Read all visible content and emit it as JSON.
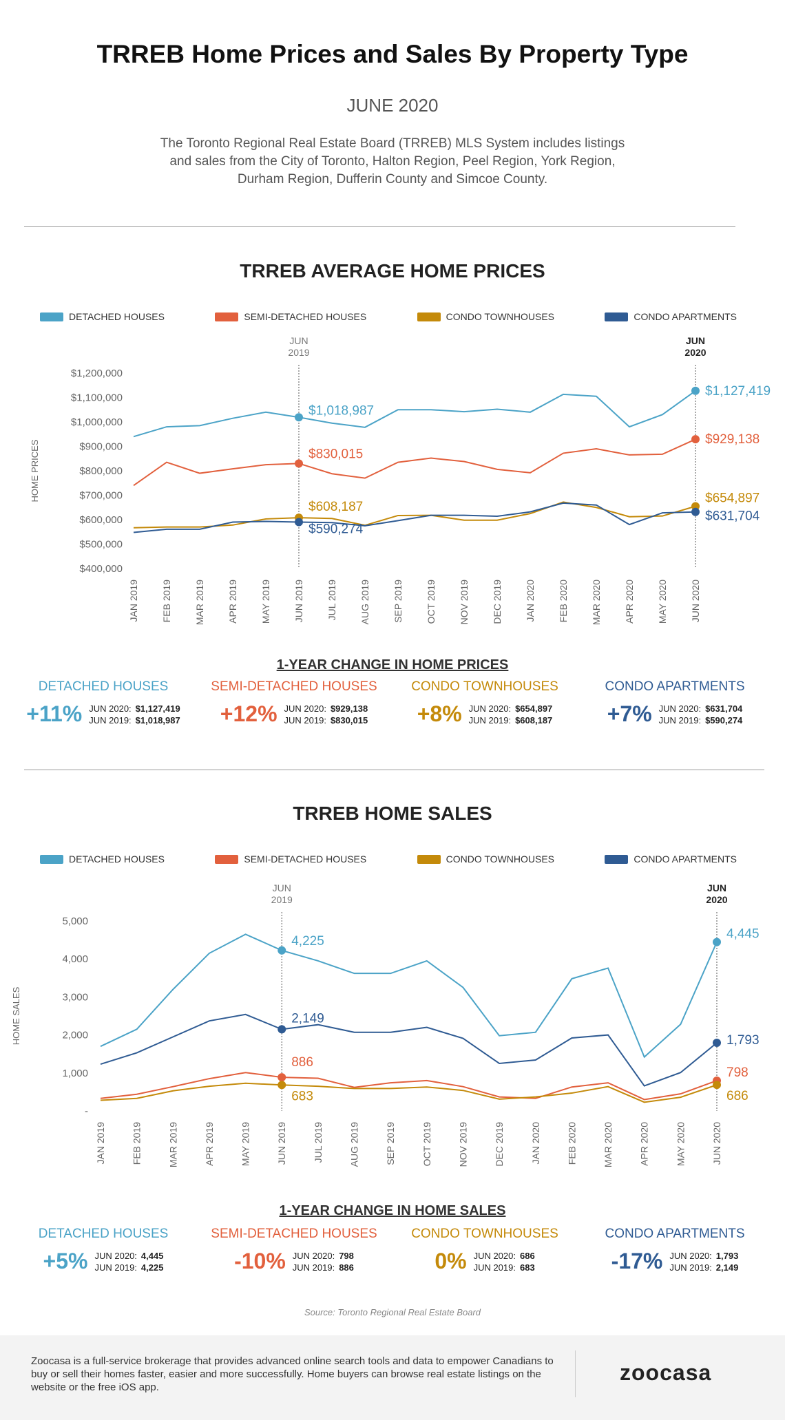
{
  "header": {
    "title": "TRREB Home Prices and Sales By Property Type",
    "subtitle": "JUNE 2020",
    "description": "The Toronto Regional Real Estate Board (TRREB) MLS System includes listings and sales from the City of Toronto, Halton Region, Peel Region, York Region, Durham Region, Dufferin County and Simcoe County."
  },
  "colors": {
    "detached": "#4ba3c7",
    "semi": "#e2603d",
    "town": "#c48a0a",
    "apt": "#2f5b93"
  },
  "legend": [
    "DETACHED HOUSES",
    "SEMI-DETACHED HOUSES",
    "CONDO TOWNHOUSES",
    "CONDO APARTMENTS"
  ],
  "chart_data": [
    {
      "type": "line",
      "title": "TRREB AVERAGE HOME PRICES",
      "ylabel": "HOME PRICES",
      "ylim": [
        400000,
        1200000
      ],
      "yticks": [
        "$400,000",
        "$500,000",
        "$600,000",
        "$700,000",
        "$800,000",
        "$900,000",
        "$1,000,000",
        "$1,100,000",
        "$1,200,000"
      ],
      "categories": [
        "JAN 2019",
        "FEB 2019",
        "MAR 2019",
        "APR 2019",
        "MAY 2019",
        "JUN 2019",
        "JUL 2019",
        "AUG 2019",
        "SEP 2019",
        "OCT 2019",
        "NOV 2019",
        "DEC 2019",
        "JAN 2020",
        "FEB 2020",
        "MAR 2020",
        "APR 2020",
        "MAY 2020",
        "JUN 2020"
      ],
      "markers": [
        {
          "index": 5,
          "label": "JUN 2019"
        },
        {
          "index": 17,
          "label": "JUN 2020"
        }
      ],
      "series": [
        {
          "name": "DETACHED HOUSES",
          "color": "#4ba3c7",
          "values": [
            940000,
            980000,
            985000,
            1015000,
            1040000,
            1018987,
            995000,
            978000,
            1050000,
            1050000,
            1042000,
            1052000,
            1040000,
            1113000,
            1105000,
            980000,
            1030000,
            1127419
          ],
          "labels": [
            "$1,018,987",
            "$1,127,419"
          ]
        },
        {
          "name": "SEMI-DETACHED HOUSES",
          "color": "#e2603d",
          "values": [
            740000,
            835000,
            790000,
            808000,
            825000,
            830015,
            788000,
            770000,
            835000,
            852000,
            838000,
            806000,
            792000,
            872000,
            890000,
            865000,
            868000,
            929138
          ],
          "labels": [
            "$830,015",
            "$929,138"
          ]
        },
        {
          "name": "CONDO TOWNHOUSES",
          "color": "#c48a0a",
          "values": [
            567000,
            570000,
            570000,
            578000,
            603000,
            608187,
            605000,
            577000,
            617000,
            618000,
            598000,
            598000,
            625000,
            672000,
            650000,
            612000,
            615000,
            654897
          ],
          "labels": [
            "$608,187",
            "$654,897"
          ]
        },
        {
          "name": "CONDO APARTMENTS",
          "color": "#2f5b93",
          "values": [
            548000,
            561000,
            561000,
            590000,
            593000,
            590274,
            588000,
            575000,
            596000,
            618000,
            618000,
            614000,
            632000,
            668000,
            660000,
            580000,
            628000,
            631704
          ],
          "labels": [
            "$590,274",
            "$631,704"
          ]
        }
      ]
    },
    {
      "type": "line",
      "title": "TRREB HOME SALES",
      "ylabel": "HOME SALES",
      "ylim": [
        0,
        5000
      ],
      "yticks": [
        "-",
        "1,000",
        "2,000",
        "3,000",
        "4,000",
        "5,000"
      ],
      "categories": [
        "JAN 2019",
        "FEB 2019",
        "MAR 2019",
        "APR 2019",
        "MAY 2019",
        "JUN 2019",
        "JUL 2019",
        "AUG 2019",
        "SEP 2019",
        "OCT 2019",
        "NOV 2019",
        "DEC 2019",
        "JAN 2020",
        "FEB 2020",
        "MAR 2020",
        "APR 2020",
        "MAY 2020",
        "JUN 2020"
      ],
      "markers": [
        {
          "index": 5,
          "label": "JUN 2019"
        },
        {
          "index": 17,
          "label": "JUN 2020"
        }
      ],
      "series": [
        {
          "name": "DETACHED HOUSES",
          "color": "#4ba3c7",
          "values": [
            1700,
            2150,
            3200,
            4150,
            4650,
            4225,
            3950,
            3620,
            3620,
            3950,
            3250,
            1980,
            2070,
            3480,
            3760,
            1420,
            2280,
            4445
          ],
          "labels": [
            "4,225",
            "4,445"
          ]
        },
        {
          "name": "SEMI-DETACHED HOUSES",
          "color": "#e2603d",
          "values": [
            330,
            440,
            640,
            850,
            1010,
            886,
            860,
            620,
            740,
            800,
            640,
            370,
            330,
            630,
            740,
            300,
            450,
            798
          ],
          "labels": [
            "886",
            "798"
          ]
        },
        {
          "name": "CONDO TOWNHOUSES",
          "color": "#c48a0a",
          "values": [
            280,
            330,
            530,
            650,
            730,
            683,
            650,
            590,
            590,
            630,
            540,
            310,
            370,
            470,
            640,
            230,
            360,
            686
          ],
          "labels": [
            "683",
            "686"
          ]
        },
        {
          "name": "CONDO APARTMENTS",
          "color": "#2f5b93",
          "values": [
            1230,
            1530,
            1950,
            2370,
            2540,
            2149,
            2270,
            2070,
            2070,
            2200,
            1910,
            1250,
            1340,
            1920,
            2000,
            660,
            1010,
            1793
          ],
          "labels": [
            "2,149",
            "1,793"
          ]
        }
      ]
    }
  ],
  "price_change": {
    "title": "1-YEAR CHANGE IN HOME PRICES",
    "items": [
      {
        "name": "DETACHED HOUSES",
        "pct": "+11%",
        "l1": "JUN 2020:",
        "v1": "$1,127,419",
        "l2": "JUN 2019:",
        "v2": "$1,018,987"
      },
      {
        "name": "SEMI-DETACHED HOUSES",
        "pct": "+12%",
        "l1": "JUN 2020:",
        "v1": "$929,138",
        "l2": "JUN 2019:",
        "v2": "$830,015"
      },
      {
        "name": "CONDO TOWNHOUSES",
        "pct": "+8%",
        "l1": "JUN 2020:",
        "v1": "$654,897",
        "l2": "JUN 2019:",
        "v2": "$608,187"
      },
      {
        "name": "CONDO APARTMENTS",
        "pct": "+7%",
        "l1": "JUN 2020:",
        "v1": "$631,704",
        "l2": "JUN 2019:",
        "v2": "$590,274"
      }
    ]
  },
  "sales_change": {
    "title": "1-YEAR CHANGE IN HOME SALES",
    "items": [
      {
        "name": "DETACHED HOUSES",
        "pct": "+5%",
        "l1": "JUN 2020:",
        "v1": "4,445",
        "l2": "JUN 2019:",
        "v2": "4,225"
      },
      {
        "name": "SEMI-DETACHED HOUSES",
        "pct": "-10%",
        "l1": "JUN 2020:",
        "v1": "798",
        "l2": "JUN 2019:",
        "v2": "886"
      },
      {
        "name": "CONDO TOWNHOUSES",
        "pct": "0%",
        "l1": "JUN 2020:",
        "v1": "686",
        "l2": "JUN 2019:",
        "v2": "683"
      },
      {
        "name": "CONDO APARTMENTS",
        "pct": "-17%",
        "l1": "JUN 2020:",
        "v1": "1,793",
        "l2": "JUN 2019:",
        "v2": "2,149"
      }
    ]
  },
  "source": "Source: Toronto Regional Real Estate Board",
  "footer": {
    "text": "Zoocasa is a full-service brokerage that provides advanced online search tools and data to empower Canadians to buy or sell their homes faster, easier and more successfully. Home buyers can browse real estate listings on the website or the free iOS app.",
    "logo": "zoocasa"
  }
}
